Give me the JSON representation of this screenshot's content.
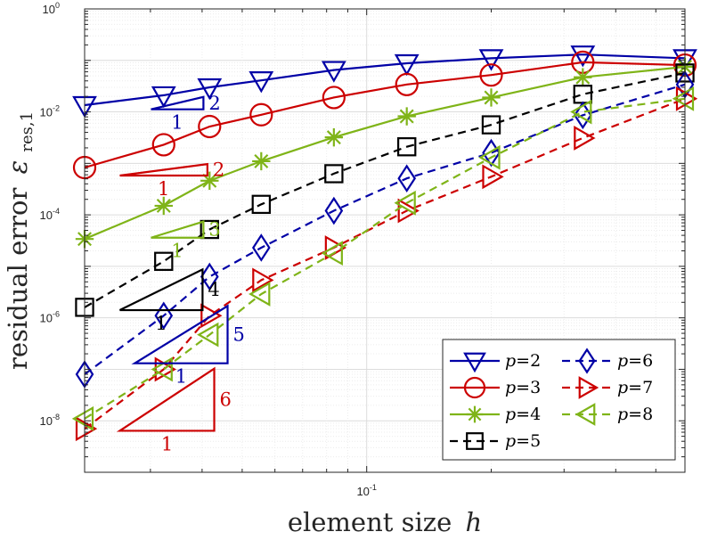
{
  "chart_data": {
    "type": "line",
    "xlabel_text": "element size",
    "xlabel_var": "h",
    "ylabel_text": "residual error",
    "ylabel_sym": "ε",
    "ylabel_sub": "res,1",
    "x_scale": "log",
    "y_scale": "log",
    "xlim": [
      0.0208,
      0.588
    ],
    "ylim": [
      1e-09,
      1
    ],
    "x_ticks": [
      {
        "base": "10",
        "exp": "-1",
        "value": 0.1
      }
    ],
    "y_ticks": [
      {
        "base": "10",
        "exp": "0",
        "value": 1
      },
      {
        "base": "10",
        "exp": "-2",
        "value": 0.01
      },
      {
        "base": "10",
        "exp": "-4",
        "value": 0.0001
      },
      {
        "base": "10",
        "exp": "-6",
        "value": 1e-06
      },
      {
        "base": "10",
        "exp": "-8",
        "value": 1e-08
      }
    ],
    "grid": true,
    "legend_position": "bottom-right",
    "series": [
      {
        "name": "p = 2",
        "p_label": "p",
        "p_value": "2",
        "color": "#0000a6",
        "marker": "triangle-down",
        "dash": false,
        "x": [
          0.0208,
          0.0323,
          0.0417,
          0.0556,
          0.0833,
          0.125,
          0.2,
          0.333,
          0.588
        ],
        "y": [
          0.0135,
          0.021,
          0.03,
          0.041,
          0.065,
          0.088,
          0.11,
          0.13,
          0.11
        ]
      },
      {
        "name": "p = 3",
        "p_label": "p",
        "p_value": "3",
        "color": "#cc0000",
        "marker": "circle",
        "dash": false,
        "x": [
          0.0208,
          0.0323,
          0.0417,
          0.0556,
          0.0833,
          0.125,
          0.2,
          0.333,
          0.588
        ],
        "y": [
          0.00083,
          0.0023,
          0.0052,
          0.0088,
          0.019,
          0.034,
          0.052,
          0.092,
          0.081
        ]
      },
      {
        "name": "p = 4",
        "p_label": "p",
        "p_value": "4",
        "color": "#7fb418",
        "marker": "asterisk",
        "dash": false,
        "x": [
          0.0208,
          0.0323,
          0.0417,
          0.0556,
          0.0833,
          0.125,
          0.2,
          0.333,
          0.588
        ],
        "y": [
          3.4e-05,
          0.00015,
          0.00046,
          0.0011,
          0.0032,
          0.0082,
          0.019,
          0.047,
          0.075
        ]
      },
      {
        "name": "p = 5",
        "p_label": "p",
        "p_value": "5",
        "color": "#000000",
        "marker": "square",
        "dash": true,
        "x": [
          0.0208,
          0.0323,
          0.0417,
          0.0556,
          0.0833,
          0.125,
          0.2,
          0.333,
          0.588
        ],
        "y": [
          1.6e-06,
          1.25e-05,
          5.2e-05,
          0.00016,
          0.00063,
          0.0021,
          0.0056,
          0.022,
          0.057
        ]
      },
      {
        "name": "p = 6",
        "p_label": "p",
        "p_value": "6",
        "color": "#0000a6",
        "marker": "diamond",
        "dash": true,
        "x": [
          0.0208,
          0.0323,
          0.0417,
          0.0556,
          0.0833,
          0.125,
          0.2,
          0.333,
          0.588
        ],
        "y": [
          8e-08,
          1.1e-06,
          6.3e-06,
          2.3e-05,
          0.00012,
          0.00051,
          0.0016,
          0.0086,
          0.034
        ]
      },
      {
        "name": "p = 7",
        "p_label": "p",
        "p_value": "7",
        "color": "#cc0000",
        "marker": "triangle-right",
        "dash": true,
        "x": [
          0.0208,
          0.0323,
          0.0417,
          0.0556,
          0.0833,
          0.125,
          0.2,
          0.333,
          0.588
        ],
        "y": [
          7e-09,
          1e-07,
          1.1e-06,
          5.4e-06,
          2.3e-05,
          0.00012,
          0.00055,
          0.0031,
          0.018
        ]
      },
      {
        "name": "p = 8",
        "p_label": "p",
        "p_value": "8",
        "color": "#7fb418",
        "marker": "triangle-left",
        "dash": true,
        "x": [
          0.0208,
          0.0323,
          0.0417,
          0.0556,
          0.0833,
          0.125,
          0.2,
          0.333,
          0.588
        ],
        "y": [
          1.1e-08,
          1e-07,
          4.7e-07,
          2.9e-06,
          1.8e-05,
          0.00017,
          0.0013,
          0.01,
          0.018
        ]
      }
    ],
    "slope_triangles": [
      {
        "color": "#0000a6",
        "h1": 0.0301,
        "h2": 0.0403,
        "e1": 0.0112,
        "e2": 0.0195,
        "run_label": "1",
        "rise_label": "2"
      },
      {
        "color": "#cc0000",
        "h1": 0.0253,
        "h2": 0.0412,
        "e1": 0.00058,
        "e2": 0.00097,
        "run_label": "1",
        "rise_label": "2"
      },
      {
        "color": "#7fb418",
        "h1": 0.0301,
        "h2": 0.0403,
        "e1": 3.6e-05,
        "e2": 7.4e-05,
        "run_label": "1",
        "rise_label": "3"
      },
      {
        "color": "#000000",
        "h1": 0.0253,
        "h2": 0.0401,
        "e1": 1.41e-06,
        "e2": 8.7e-06,
        "run_label": "1",
        "rise_label": "4"
      },
      {
        "color": "#0000a6",
        "h1": 0.0275,
        "h2": 0.0461,
        "e1": 1.31e-07,
        "e2": 1.7e-06,
        "run_label": "1",
        "rise_label": "5"
      },
      {
        "color": "#cc0000",
        "h1": 0.0253,
        "h2": 0.0428,
        "e1": 6.4e-09,
        "e2": 1.03e-07,
        "run_label": "1",
        "rise_label": "6"
      }
    ]
  }
}
